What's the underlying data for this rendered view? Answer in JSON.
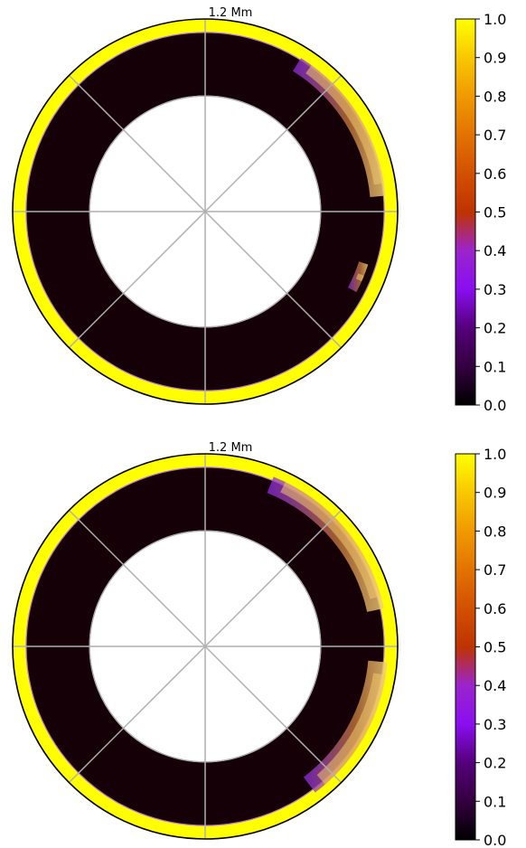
{
  "chart_data": [
    {
      "type": "heatmap",
      "projection": "polar",
      "top_label": "1.2 Mm",
      "colormap": "gnuplot",
      "colorbar": {
        "ticks": [
          "0.0",
          "0.1",
          "0.2",
          "0.3",
          "0.4",
          "0.5",
          "0.6",
          "0.7",
          "0.8",
          "0.9",
          "1.0"
        ],
        "range": [
          0,
          1
        ]
      },
      "grid": true,
      "radial_range": [
        0.6,
        1.0
      ],
      "outer_shell_value": 1.0,
      "interior_value": 0.0,
      "features": [
        {
          "angle_range_deg": [
            5,
            58
          ],
          "radial_range": [
            0.86,
            0.94
          ],
          "value_range": [
            0.3,
            1.0
          ]
        },
        {
          "angle_range_deg": [
            -28,
            -18
          ],
          "radial_range": [
            0.84,
            0.89
          ],
          "value_range": [
            0.3,
            0.5
          ]
        }
      ]
    },
    {
      "type": "heatmap",
      "projection": "polar",
      "top_label": "1.2 Mm",
      "colormap": "gnuplot",
      "colorbar": {
        "ticks": [
          "0.0",
          "0.1",
          "0.2",
          "0.3",
          "0.4",
          "0.5",
          "0.6",
          "0.7",
          "0.8",
          "0.9",
          "1.0"
        ],
        "range": [
          0,
          1
        ]
      },
      "grid": true,
      "radial_range": [
        0.6,
        1.0
      ],
      "outer_shell_value": 1.0,
      "interior_value": 0.0,
      "features": [
        {
          "angle_range_deg": [
            12,
            68
          ],
          "radial_range": [
            0.86,
            0.95
          ],
          "value_range": [
            0.3,
            1.0
          ]
        },
        {
          "angle_range_deg": [
            -53,
            -5
          ],
          "radial_range": [
            0.85,
            0.95
          ],
          "value_range": [
            0.3,
            1.0
          ]
        }
      ]
    }
  ]
}
